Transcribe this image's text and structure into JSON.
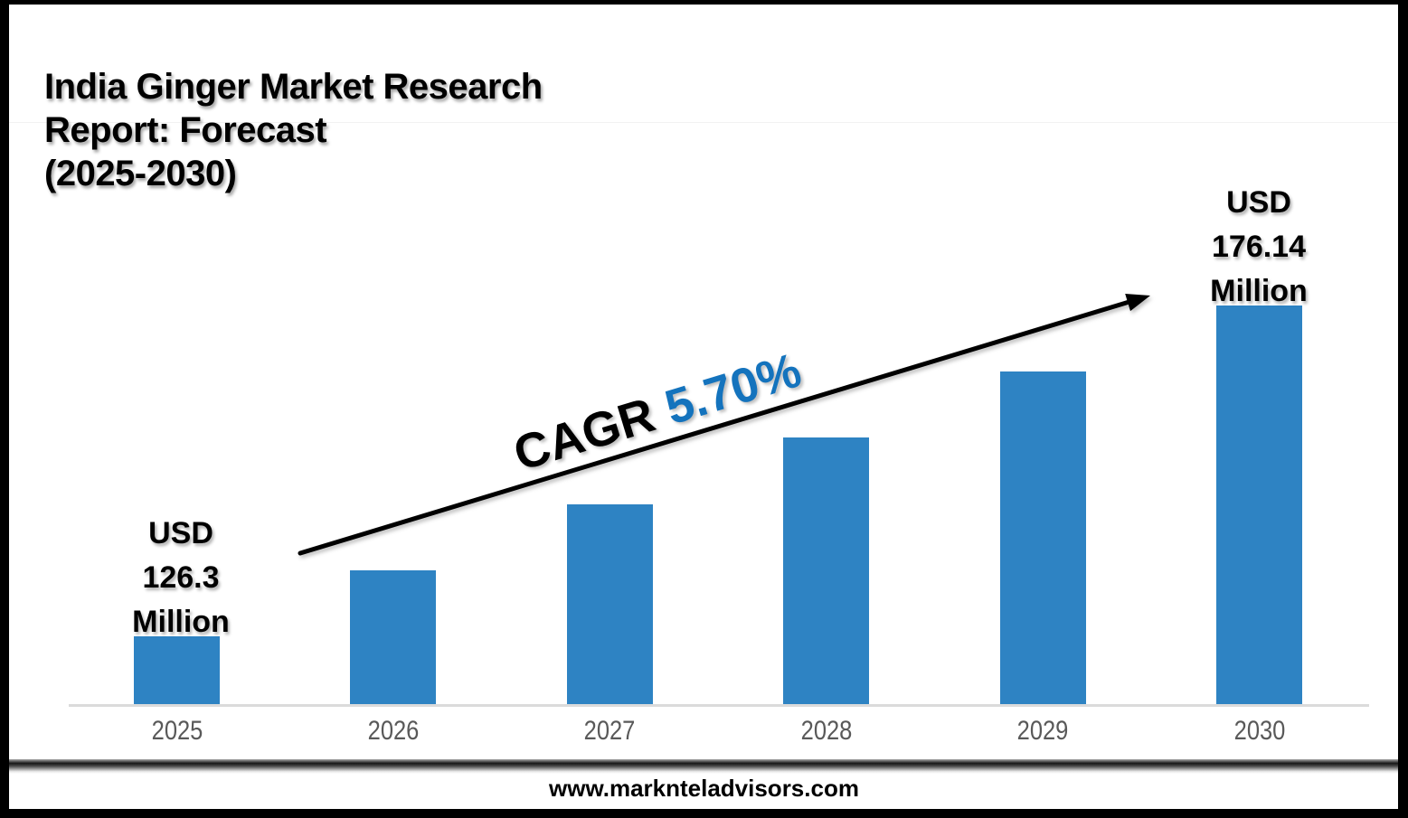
{
  "title": {
    "lines": [
      "India Ginger Market Research",
      "Report: Forecast",
      "(2025-2030)"
    ]
  },
  "chart_data": {
    "type": "bar",
    "title": "India Ginger Market Research Report: Forecast (2025-2030)",
    "categories": [
      "2025",
      "2026",
      "2027",
      "2028",
      "2029",
      "2030"
    ],
    "values": [
      126.3,
      136.27,
      146.24,
      156.2,
      166.17,
      176.14
    ],
    "labeled_points": [
      {
        "category": "2025",
        "value": 126.3,
        "label": "USD 126.3 Million"
      },
      {
        "category": "2030",
        "value": 176.14,
        "label": "USD 176.14 Million"
      }
    ],
    "unit": "USD Million",
    "cagr": "5.70%",
    "xlabel": "",
    "ylabel": "",
    "grid": false,
    "legend": false,
    "bar_color": "#2E83C3"
  },
  "annotations": {
    "first_bar_label": [
      "USD",
      "126.3",
      "Million"
    ],
    "last_bar_label": [
      "USD",
      "176.14",
      "Million"
    ],
    "cagr_prefix": "CAGR",
    "cagr_value": "5.70%"
  },
  "footer": {
    "url": "www.marknteladvisors.com"
  },
  "colors": {
    "bar": "#2E83C3",
    "cagr_value": "#1473BD",
    "year_label": "#595959",
    "axis_line": "#DBDBDB",
    "text": "#000000"
  }
}
